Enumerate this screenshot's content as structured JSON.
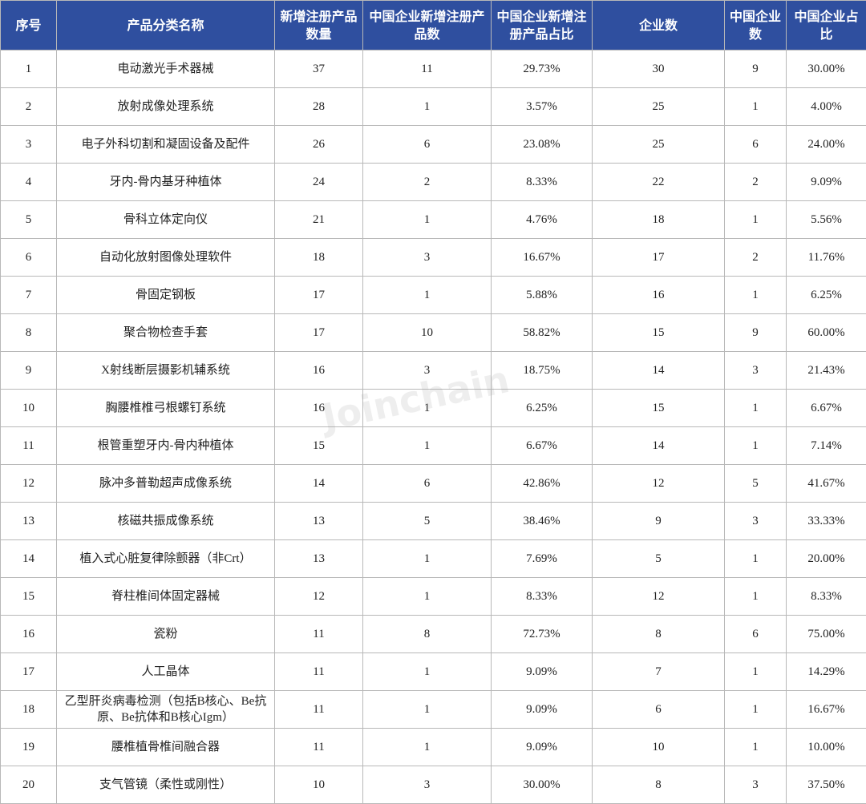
{
  "table": {
    "header": [
      "序号",
      "产品分类名称",
      "新增注册产品数量",
      "中国企业新增注册产品数",
      "中国企业新增注册产品占比",
      "企业数",
      "中国企业数",
      "中国企业占比"
    ],
    "rows": [
      [
        "1",
        "电动激光手术器械",
        "37",
        "11",
        "29.73%",
        "30",
        "9",
        "30.00%"
      ],
      [
        "2",
        "放射成像处理系统",
        "28",
        "1",
        "3.57%",
        "25",
        "1",
        "4.00%"
      ],
      [
        "3",
        "电子外科切割和凝固设备及配件",
        "26",
        "6",
        "23.08%",
        "25",
        "6",
        "24.00%"
      ],
      [
        "4",
        "牙内-骨内基牙种植体",
        "24",
        "2",
        "8.33%",
        "22",
        "2",
        "9.09%"
      ],
      [
        "5",
        "骨科立体定向仪",
        "21",
        "1",
        "4.76%",
        "18",
        "1",
        "5.56%"
      ],
      [
        "6",
        "自动化放射图像处理软件",
        "18",
        "3",
        "16.67%",
        "17",
        "2",
        "11.76%"
      ],
      [
        "7",
        "骨固定钢板",
        "17",
        "1",
        "5.88%",
        "16",
        "1",
        "6.25%"
      ],
      [
        "8",
        "聚合物检查手套",
        "17",
        "10",
        "58.82%",
        "15",
        "9",
        "60.00%"
      ],
      [
        "9",
        "X射线断层摄影机辅系统",
        "16",
        "3",
        "18.75%",
        "14",
        "3",
        "21.43%"
      ],
      [
        "10",
        "胸腰椎椎弓根螺钉系统",
        "16",
        "1",
        "6.25%",
        "15",
        "1",
        "6.67%"
      ],
      [
        "11",
        "根管重塑牙内-骨内种植体",
        "15",
        "1",
        "6.67%",
        "14",
        "1",
        "7.14%"
      ],
      [
        "12",
        "脉冲多普勒超声成像系统",
        "14",
        "6",
        "42.86%",
        "12",
        "5",
        "41.67%"
      ],
      [
        "13",
        "核磁共振成像系统",
        "13",
        "5",
        "38.46%",
        "9",
        "3",
        "33.33%"
      ],
      [
        "14",
        "植入式心脏复律除颤器（非Crt）",
        "13",
        "1",
        "7.69%",
        "5",
        "1",
        "20.00%"
      ],
      [
        "15",
        "脊柱椎间体固定器械",
        "12",
        "1",
        "8.33%",
        "12",
        "1",
        "8.33%"
      ],
      [
        "16",
        "瓷粉",
        "11",
        "8",
        "72.73%",
        "8",
        "6",
        "75.00%"
      ],
      [
        "17",
        "人工晶体",
        "11",
        "1",
        "9.09%",
        "7",
        "1",
        "14.29%"
      ],
      [
        "18",
        "乙型肝炎病毒检测（包括B核心、Be抗原、Be抗体和B核心Igm）",
        "11",
        "1",
        "9.09%",
        "6",
        "1",
        "16.67%"
      ],
      [
        "19",
        "腰椎植骨椎间融合器",
        "11",
        "1",
        "9.09%",
        "10",
        "1",
        "10.00%"
      ],
      [
        "20",
        "支气管镜（柔性或刚性）",
        "10",
        "3",
        "30.00%",
        "8",
        "3",
        "37.50%"
      ]
    ],
    "watermark": "Joinchain"
  }
}
